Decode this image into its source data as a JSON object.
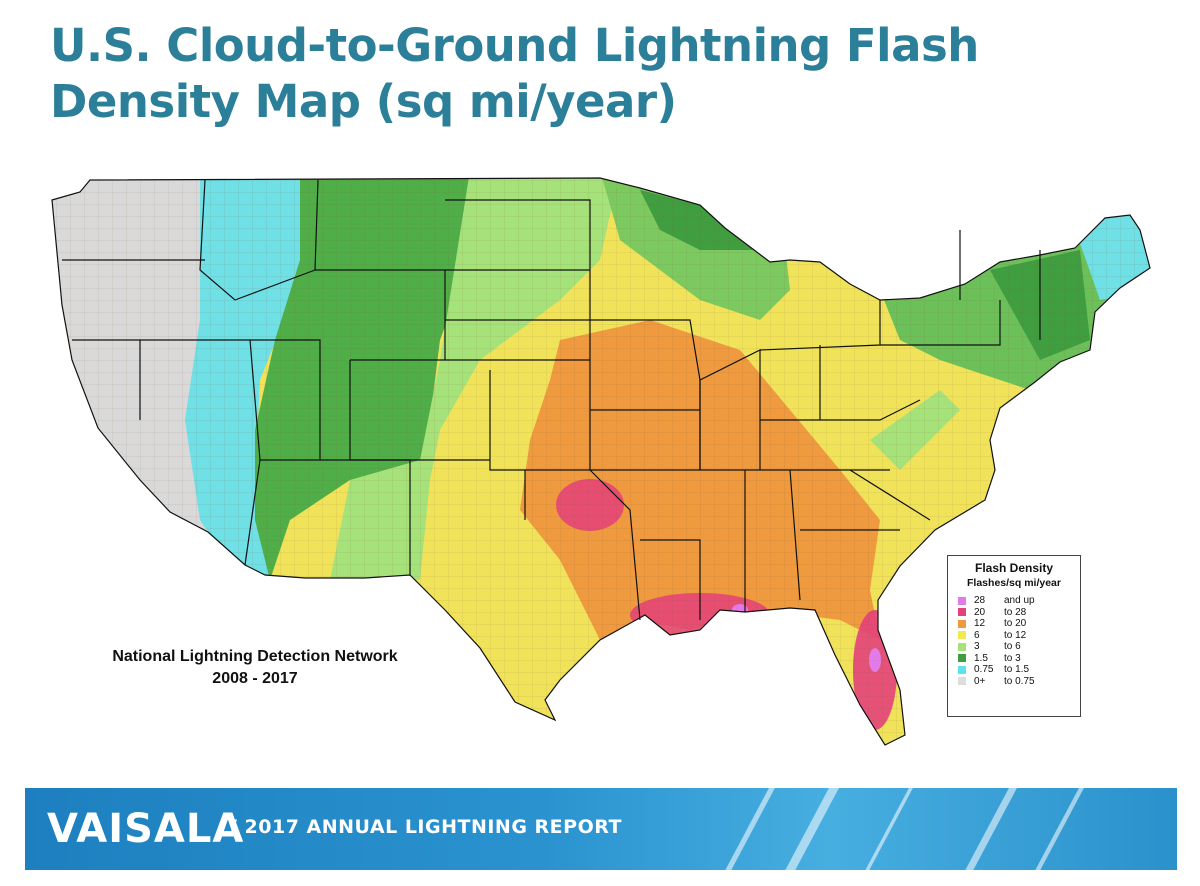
{
  "title": {
    "line1": "U.S. Cloud-to-Ground Lightning Flash",
    "line2": "Density Map (sq mi/year)"
  },
  "map": {
    "network_line1": "National Lightning Detection Network",
    "network_line2": "2008 - 2017"
  },
  "legend": {
    "title": "Flash Density",
    "subtitle": "Flashes/sq mi/year",
    "items": [
      {
        "low": "28",
        "high": "and up",
        "color": "#e27be8"
      },
      {
        "low": "20",
        "high": "to 28",
        "color": "#e4407a"
      },
      {
        "low": "12",
        "high": "to 20",
        "color": "#ef9a3e"
      },
      {
        "low": "6",
        "high": "to 12",
        "color": "#f2ea4c"
      },
      {
        "low": "3",
        "high": "to 6",
        "color": "#a6e27a"
      },
      {
        "low": "1.5",
        "high": "to 3",
        "color": "#3f9e3f"
      },
      {
        "low": "0.75",
        "high": "to 1.5",
        "color": "#5ee3ea"
      },
      {
        "low": "0+",
        "high": "to 0.75",
        "color": "#dddddd"
      }
    ]
  },
  "footer": {
    "brand": "VAISALA",
    "report": "/ 2017 ANNUAL LIGHTNING REPORT"
  }
}
